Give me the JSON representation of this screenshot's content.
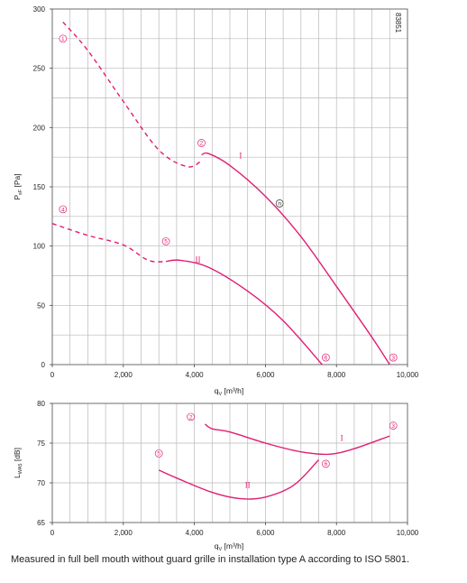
{
  "caption": "Measured in full bell mouth without guard grille in installation type A according to ISO 5801.",
  "figure_id": "83851",
  "colors": {
    "curve": "#e11d74",
    "grid": "#b8b8b8",
    "operating_point": "#222222"
  },
  "chart_data": [
    {
      "type": "line",
      "xlabel": "q",
      "xlabel_sub": "V",
      "xlabel_unit": "[m³/h]",
      "ylabel": "P",
      "ylabel_sub": "sF",
      "ylabel_unit": "[Pa]",
      "xlim": [
        0,
        10000
      ],
      "ylim": [
        0,
        300
      ],
      "x_ticks": [
        0,
        2000,
        4000,
        6000,
        8000,
        10000
      ],
      "x_tick_labels": [
        "0",
        "2,000",
        "4,000",
        "6,000",
        "8,000",
        "10,000"
      ],
      "y_ticks": [
        0,
        50,
        100,
        150,
        200,
        250,
        300
      ],
      "y_tick_labels": [
        "0",
        "50",
        "100",
        "150",
        "200",
        "250",
        "300"
      ],
      "grid": true,
      "series": [
        {
          "name": "I",
          "dashed_part": {
            "x": [
              300,
              1000,
              2000,
              3000,
              3800,
              4200
            ],
            "y": [
              289,
              265,
              222,
              181,
              167,
              172
            ]
          },
          "solid_part": {
            "x": [
              4200,
              4400,
              5000,
              6000,
              7000,
              8000,
              9000,
              9500
            ],
            "y": [
              177,
              178,
              168,
              142,
              108,
              66,
              23,
              0
            ]
          }
        },
        {
          "name": "II",
          "dashed_part": {
            "x": [
              0,
              1000,
              2000,
              2700,
              3200
            ],
            "y": [
              119,
              109,
              101,
              88,
              87
            ]
          },
          "solid_part": {
            "x": [
              3200,
              3600,
              4400,
              5500,
              6500,
              7600
            ],
            "y": [
              87,
              88,
              82,
              62,
              37,
              0
            ]
          }
        }
      ],
      "point_markers": [
        {
          "label": "1",
          "x": 300,
          "y": 275
        },
        {
          "label": "2",
          "x": 4200,
          "y": 187
        },
        {
          "label": "3",
          "x": 9600,
          "y": 6
        },
        {
          "label": "4",
          "x": 300,
          "y": 131
        },
        {
          "label": "5",
          "x": 3200,
          "y": 104
        },
        {
          "label": "6",
          "x": 7700,
          "y": 6
        }
      ],
      "series_labels": [
        {
          "text": "I",
          "x": 5300,
          "y": 174
        },
        {
          "text": "II",
          "x": 4100,
          "y": 86
        }
      ],
      "operating_point": {
        "label": "n",
        "x": 6400,
        "y": 136
      }
    },
    {
      "type": "line",
      "xlabel": "q",
      "xlabel_sub": "V",
      "xlabel_unit": "[m³/h]",
      "ylabel": "L",
      "ylabel_sub": "WA5",
      "ylabel_unit": "[dB]",
      "xlim": [
        0,
        10000
      ],
      "ylim": [
        65,
        80
      ],
      "x_ticks": [
        0,
        2000,
        4000,
        6000,
        8000,
        10000
      ],
      "x_tick_labels": [
        "0",
        "2,000",
        "4,000",
        "6,000",
        "8,000",
        "10,000"
      ],
      "y_ticks": [
        65,
        70,
        75,
        80
      ],
      "y_tick_labels": [
        "65",
        "70",
        "75",
        "80"
      ],
      "grid": true,
      "series": [
        {
          "name": "I",
          "x": [
            4300,
            4500,
            5000,
            6000,
            7000,
            7800,
            8500,
            9500
          ],
          "y": [
            77.4,
            76.8,
            76.4,
            75.0,
            73.9,
            73.6,
            74.3,
            75.9
          ]
        },
        {
          "name": "II",
          "x": [
            3000,
            3500,
            4500,
            5300,
            6000,
            6800,
            7500
          ],
          "y": [
            71.6,
            70.6,
            68.8,
            68.0,
            68.2,
            69.7,
            72.9
          ]
        }
      ],
      "point_markers": [
        {
          "label": "2",
          "x": 3900,
          "y": 78.3
        },
        {
          "label": "3",
          "x": 9600,
          "y": 77.2
        },
        {
          "label": "5",
          "x": 3000,
          "y": 73.7
        },
        {
          "label": "6",
          "x": 7700,
          "y": 72.4
        }
      ],
      "series_labels": [
        {
          "text": "I",
          "x": 8150,
          "y": 75.3
        },
        {
          "text": "II",
          "x": 5500,
          "y": 69.4
        }
      ]
    }
  ]
}
